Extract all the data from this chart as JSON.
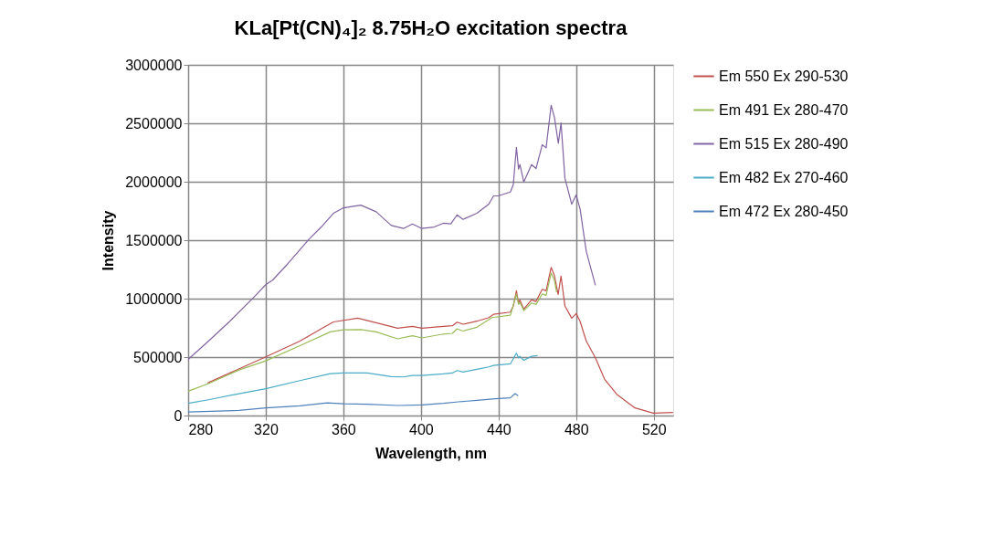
{
  "chart_data": {
    "type": "line",
    "title": "KLa[Pt(CN)₄]₂  8.75H₂O excitation spectra",
    "xlabel": "Wavelength, nm",
    "ylabel": "Intensity",
    "xlim": [
      280,
      530
    ],
    "xticks": [
      280,
      320,
      360,
      400,
      440,
      480,
      520
    ],
    "ylim": [
      0,
      3000000
    ],
    "yticks": [
      0,
      500000,
      1000000,
      1500000,
      2000000,
      2500000,
      3000000
    ],
    "grid": true,
    "legend": "right",
    "marker": "none",
    "line_style": "solid",
    "series": [
      {
        "name": "Em 550  Ex 290-530",
        "color": "#c0504d",
        "x": [
          290,
          320,
          337.6,
          348.6,
          354.9,
          367.4,
          376.9,
          387.9,
          395.6,
          400.5,
          411.5,
          416.2,
          418.6,
          421.7,
          428.8,
          435,
          437.4,
          446.1,
          447.6,
          449.2,
          450.3,
          451,
          453,
          457,
          459.3,
          462.5,
          464.5,
          467.1,
          468.8,
          470.7,
          472.2,
          474.2,
          477.7,
          480,
          482,
          485.2,
          489.9,
          494.6,
          500.9,
          510.3,
          519.7,
          529.9
        ],
        "values": [
          278000,
          502000,
          637000,
          742000,
          801000,
          833000,
          794000,
          747000,
          762000,
          747000,
          762000,
          768000,
          799000,
          781000,
          807000,
          838000,
          866000,
          885000,
          937000,
          1067000,
          963000,
          989000,
          911000,
          989000,
          976000,
          1080000,
          1067000,
          1267000,
          1197000,
          1036000,
          1192000,
          937000,
          833000,
          872000,
          807000,
          637000,
          494000,
          312000,
          182000,
          65000,
          21000,
          26000
        ]
      },
      {
        "name": "Em 491  Ex 280-470",
        "color": "#9bbb59",
        "x": [
          280,
          290.5,
          306.2,
          320,
          337.6,
          353.3,
          360,
          369,
          376.9,
          387.9,
          395.6,
          400.5,
          411.5,
          416.2,
          418.6,
          421.7,
          428.8,
          436.6,
          446.1,
          449.2,
          450.3,
          451,
          453,
          457,
          459.3,
          462.5,
          464.5,
          467.1,
          468.8,
          469.9
        ],
        "values": [
          208000,
          273000,
          390000,
          468000,
          598000,
          716000,
          734000,
          736000,
          716000,
          656000,
          682000,
          664000,
          697000,
          703000,
          742000,
          723000,
          755000,
          838000,
          859000,
          1041000,
          950000,
          968000,
          898000,
          963000,
          950000,
          1041000,
          1028000,
          1218000,
          1158000,
          1054000
        ]
      },
      {
        "name": "Em 515  Ex 280-490",
        "color": "#8064a2",
        "x": [
          280,
          289.7,
          301.5,
          314,
          320,
          323.5,
          331.5,
          342.3,
          348.6,
          354.9,
          360,
          369,
          376.9,
          384.7,
          391,
          395.6,
          400.5,
          406.8,
          411.5,
          415.4,
          418.6,
          421.7,
          428.8,
          435,
          437.4,
          439.8,
          446.1,
          447.6,
          449.2,
          450.3,
          451,
          453,
          457,
          459.3,
          462.5,
          464.5,
          467.1,
          468.8,
          470.8,
          472.2,
          474.2,
          477.7,
          480,
          482,
          485.2,
          489.9
        ],
        "values": [
          481000,
          625000,
          807000,
          1015000,
          1119000,
          1158000,
          1301000,
          1509000,
          1613000,
          1730000,
          1777000,
          1800000,
          1743000,
          1626000,
          1600000,
          1639000,
          1600000,
          1613000,
          1645000,
          1640000,
          1717000,
          1678000,
          1730000,
          1808000,
          1879000,
          1879000,
          1912000,
          1977000,
          2295000,
          2108000,
          2147000,
          1998000,
          2147000,
          2113000,
          2316000,
          2290000,
          2654000,
          2550000,
          2329000,
          2503000,
          2030000,
          1808000,
          1886000,
          1769000,
          1405000,
          1114000
        ]
      },
      {
        "name": "Em 482  Ex 270-460",
        "color": "#4bacc6",
        "x": [
          280,
          290.5,
          306.2,
          320,
          337.6,
          353.3,
          360,
          372.2,
          384.7,
          391,
          395.6,
          400.5,
          411.5,
          416.2,
          418.6,
          421.7,
          428.8,
          435,
          437.4,
          446.1,
          449.2,
          450.3,
          451,
          453,
          457,
          460.1
        ],
        "values": [
          104000,
          135000,
          187000,
          229000,
          299000,
          359000,
          364000,
          364000,
          333000,
          330000,
          343000,
          343000,
          356000,
          364000,
          385000,
          372000,
          395000,
          416000,
          429000,
          442000,
          533000,
          494000,
          507000,
          473000,
          507000,
          512000
        ]
      },
      {
        "name": "Em 472  Ex 280-450",
        "color": "#4f81bd",
        "x": [
          280,
          306.2,
          320,
          337.6,
          351.7,
          360,
          372.2,
          387.9,
          400.5,
          411.5,
          419.3,
          428.8,
          438.2,
          446.1,
          448.5,
          450.1
        ],
        "values": [
          31000,
          44000,
          65000,
          83000,
          109000,
          101000,
          96000,
          86000,
          91000,
          104000,
          117000,
          130000,
          143000,
          151000,
          187000,
          169000
        ]
      }
    ]
  }
}
